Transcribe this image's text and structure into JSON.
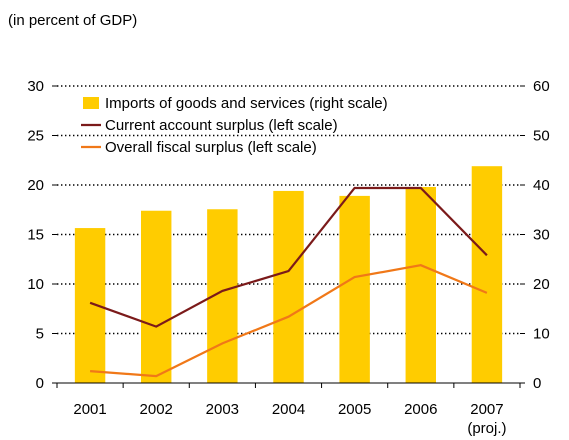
{
  "unit_label": "(in percent of GDP)",
  "chart_data": {
    "type": "bar",
    "categories": [
      "2001",
      "2002",
      "2003",
      "2004",
      "2005",
      "2006",
      "2007"
    ],
    "category_sublabels": [
      "",
      "",
      "",
      "",
      "",
      "",
      "(proj.)"
    ],
    "left_axis": {
      "ylim": [
        0,
        30
      ],
      "ticks": [
        0,
        5,
        10,
        15,
        20,
        25,
        30
      ]
    },
    "right_axis": {
      "ylim": [
        0,
        60
      ],
      "ticks": [
        0,
        10,
        20,
        30,
        40,
        50,
        60
      ]
    },
    "grid": "dotted horizontal",
    "legend_position": "top-left",
    "series": [
      {
        "name": "Imports of goods and services (right scale)",
        "type": "bar",
        "axis": "right",
        "color": "#FFCC00",
        "values": [
          31.3,
          34.8,
          35.1,
          38.8,
          37.8,
          39.6,
          43.8
        ]
      },
      {
        "name": "Current account surplus (left scale)",
        "type": "line",
        "axis": "left",
        "color": "#7B1A1A",
        "values": [
          8.1,
          5.7,
          9.3,
          11.3,
          19.7,
          19.7,
          12.9
        ]
      },
      {
        "name": "Overall fiscal surplus (left scale)",
        "type": "line",
        "axis": "left",
        "color": "#F07818",
        "values": [
          1.2,
          0.7,
          4.0,
          6.7,
          10.7,
          11.9,
          9.1
        ]
      }
    ]
  }
}
